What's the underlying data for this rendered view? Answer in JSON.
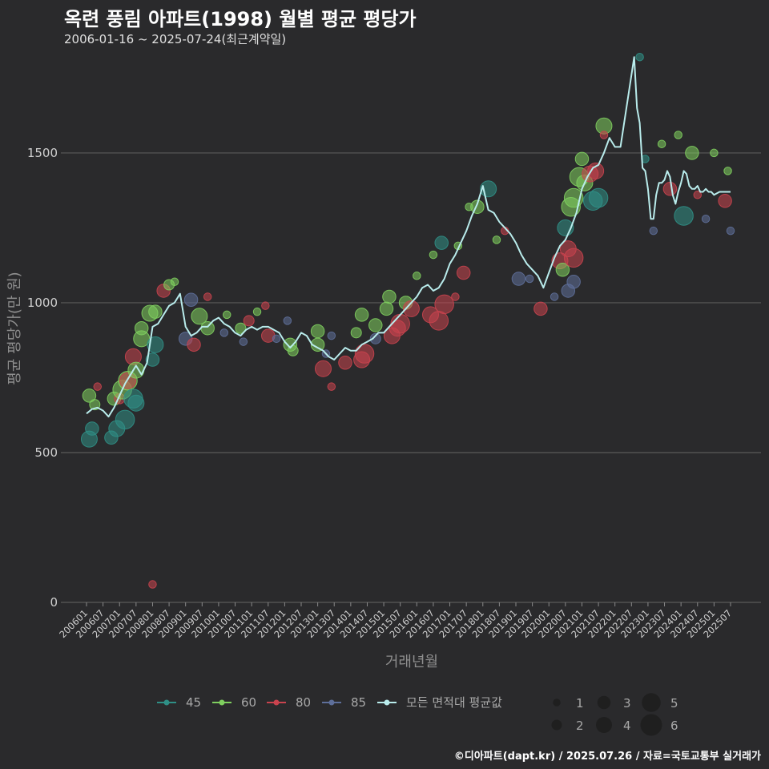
{
  "header": {
    "title": "옥련 풍림 아파트(1998) 월별 평균 평당가",
    "subtitle": "2006-01-16 ~ 2025-07-24(최근계약일)"
  },
  "footer": {
    "credit": "©디아파트(dapt.kr) / 2025.07.26 / 자료=국토교통부 실거래가"
  },
  "colors": {
    "45": "#2f8f86",
    "60": "#7fcf5f",
    "80": "#c9434e",
    "85": "#5e6f9a",
    "avg": "#b9ecec",
    "grid": "#5a5a5a",
    "bg": "#2a2a2c"
  },
  "chart_data": {
    "type": "line",
    "title": "옥련 풍림 아파트(1998) 월별 평균 평당가",
    "xlabel": "거래년월",
    "ylabel": "평균 평당가(만 원)",
    "xlim": [
      "2006-01",
      "2025-07"
    ],
    "ylim": [
      0,
      1850
    ],
    "yticks": [
      0,
      500,
      1000,
      1500
    ],
    "xticks": [
      "200601",
      "200607",
      "200701",
      "200707",
      "200801",
      "200807",
      "200901",
      "200907",
      "201001",
      "201007",
      "201101",
      "201107",
      "201201",
      "201207",
      "201301",
      "201307",
      "201401",
      "201407",
      "201501",
      "201507",
      "201601",
      "201607",
      "201701",
      "201707",
      "201801",
      "201807",
      "201901",
      "201907",
      "202001",
      "202007",
      "202101",
      "202107",
      "202201",
      "202207",
      "202301",
      "202307",
      "202401",
      "202407",
      "202501",
      "202507"
    ],
    "legend": {
      "series": [
        {
          "key": "45",
          "label": "45"
        },
        {
          "key": "60",
          "label": "60"
        },
        {
          "key": "80",
          "label": "80"
        },
        {
          "key": "85",
          "label": "85"
        },
        {
          "key": "avg",
          "label": "모든 면적대 평균값"
        }
      ],
      "sizes": [
        {
          "value": 1,
          "label": "1"
        },
        {
          "value": 2,
          "label": "2"
        },
        {
          "value": 3,
          "label": "3"
        },
        {
          "value": 4,
          "label": "4"
        },
        {
          "value": 5,
          "label": "5"
        },
        {
          "value": 6,
          "label": "6"
        }
      ]
    },
    "average_line": {
      "name": "모든 면적대 평균값",
      "x": [
        "2006-01",
        "2006-03",
        "2006-05",
        "2006-07",
        "2006-09",
        "2006-11",
        "2007-01",
        "2007-03",
        "2007-05",
        "2007-07",
        "2007-09",
        "2007-11",
        "2008-01",
        "2008-03",
        "2008-05",
        "2008-07",
        "2008-09",
        "2008-11",
        "2009-01",
        "2009-03",
        "2009-05",
        "2009-07",
        "2009-09",
        "2009-11",
        "2010-01",
        "2010-03",
        "2010-05",
        "2010-07",
        "2010-09",
        "2010-11",
        "2011-01",
        "2011-03",
        "2011-05",
        "2011-07",
        "2011-09",
        "2011-11",
        "2012-01",
        "2012-03",
        "2012-05",
        "2012-07",
        "2012-09",
        "2012-11",
        "2013-01",
        "2013-03",
        "2013-05",
        "2013-07",
        "2013-09",
        "2013-11",
        "2014-01",
        "2014-03",
        "2014-05",
        "2014-07",
        "2014-09",
        "2014-11",
        "2015-01",
        "2015-03",
        "2015-05",
        "2015-07",
        "2015-09",
        "2015-11",
        "2016-01",
        "2016-03",
        "2016-05",
        "2016-07",
        "2016-09",
        "2016-11",
        "2017-01",
        "2017-03",
        "2017-05",
        "2017-07",
        "2017-09",
        "2017-11",
        "2018-01",
        "2018-03",
        "2018-05",
        "2018-07",
        "2018-09",
        "2018-11",
        "2019-01",
        "2019-03",
        "2019-05",
        "2019-07",
        "2019-09",
        "2019-11",
        "2020-01",
        "2020-03",
        "2020-05",
        "2020-07",
        "2020-09",
        "2020-11",
        "2021-01",
        "2021-03",
        "2021-05",
        "2021-07",
        "2021-09",
        "2021-11",
        "2022-01",
        "2022-03",
        "2022-08",
        "2022-09",
        "2022-10",
        "2022-11",
        "2022-12",
        "2023-01",
        "2023-02",
        "2023-03",
        "2023-04",
        "2023-05",
        "2023-06",
        "2023-07",
        "2023-08",
        "2023-09",
        "2023-10",
        "2023-11",
        "2023-12",
        "2024-01",
        "2024-02",
        "2024-03",
        "2024-04",
        "2024-05",
        "2024-06",
        "2024-07",
        "2024-08",
        "2024-09",
        "2024-10",
        "2024-11",
        "2024-12",
        "2025-01",
        "2025-02",
        "2025-03",
        "2025-04",
        "2025-05",
        "2025-06",
        "2025-07"
      ],
      "y": [
        630,
        645,
        650,
        640,
        620,
        650,
        690,
        730,
        760,
        790,
        760,
        800,
        920,
        930,
        960,
        990,
        1000,
        1030,
        920,
        890,
        900,
        920,
        920,
        940,
        950,
        930,
        920,
        900,
        890,
        910,
        920,
        910,
        920,
        920,
        910,
        900,
        870,
        850,
        870,
        900,
        890,
        860,
        850,
        840,
        820,
        810,
        830,
        850,
        840,
        840,
        860,
        870,
        880,
        900,
        900,
        920,
        940,
        960,
        980,
        1000,
        1020,
        1050,
        1060,
        1040,
        1050,
        1080,
        1130,
        1160,
        1200,
        1240,
        1290,
        1330,
        1390,
        1310,
        1300,
        1270,
        1250,
        1230,
        1200,
        1160,
        1130,
        1110,
        1090,
        1050,
        1100,
        1150,
        1190,
        1210,
        1250,
        1300,
        1380,
        1420,
        1450,
        1460,
        1500,
        1550,
        1520,
        1520,
        1820,
        1650,
        1600,
        1450,
        1440,
        1380,
        1280,
        1280,
        1360,
        1400,
        1400,
        1410,
        1440,
        1420,
        1360,
        1330,
        1370,
        1400,
        1440,
        1430,
        1390,
        1380,
        1380,
        1390,
        1370,
        1370,
        1380,
        1370,
        1370,
        1360,
        1365,
        1370,
        1370,
        1370,
        1370,
        1370
      ]
    },
    "scatter": [
      {
        "size_class": "45",
        "x": "2006-02",
        "y": 545,
        "count": 4
      },
      {
        "size_class": "45",
        "x": "2006-03",
        "y": 580,
        "count": 3
      },
      {
        "size_class": "60",
        "x": "2006-02",
        "y": 690,
        "count": 3
      },
      {
        "size_class": "60",
        "x": "2006-04",
        "y": 660,
        "count": 2
      },
      {
        "size_class": "80",
        "x": "2006-05",
        "y": 720,
        "count": 1
      },
      {
        "size_class": "45",
        "x": "2006-10",
        "y": 550,
        "count": 3
      },
      {
        "size_class": "45",
        "x": "2006-12",
        "y": 580,
        "count": 4
      },
      {
        "size_class": "60",
        "x": "2006-11",
        "y": 680,
        "count": 3
      },
      {
        "size_class": "80",
        "x": "2007-01",
        "y": 680,
        "count": 2
      },
      {
        "size_class": "45",
        "x": "2007-03",
        "y": 610,
        "count": 5
      },
      {
        "size_class": "60",
        "x": "2007-02",
        "y": 710,
        "count": 5
      },
      {
        "size_class": "60",
        "x": "2007-04",
        "y": 740,
        "count": 5
      },
      {
        "size_class": "80",
        "x": "2007-04",
        "y": 740,
        "count": 4
      },
      {
        "size_class": "80",
        "x": "2007-06",
        "y": 820,
        "count": 4
      },
      {
        "size_class": "45",
        "x": "2007-06",
        "y": 680,
        "count": 5
      },
      {
        "size_class": "45",
        "x": "2007-07",
        "y": 665,
        "count": 4
      },
      {
        "size_class": "60",
        "x": "2007-07",
        "y": 775,
        "count": 4
      },
      {
        "size_class": "60",
        "x": "2007-09",
        "y": 880,
        "count": 4
      },
      {
        "size_class": "60",
        "x": "2007-09",
        "y": 915,
        "count": 3
      },
      {
        "size_class": "60",
        "x": "2007-12",
        "y": 965,
        "count": 4
      },
      {
        "size_class": "45",
        "x": "2008-01",
        "y": 810,
        "count": 3
      },
      {
        "size_class": "45",
        "x": "2008-02",
        "y": 860,
        "count": 4
      },
      {
        "size_class": "80",
        "x": "2008-01",
        "y": 60,
        "count": 1
      },
      {
        "size_class": "60",
        "x": "2008-02",
        "y": 970,
        "count": 3
      },
      {
        "size_class": "80",
        "x": "2008-05",
        "y": 1040,
        "count": 3
      },
      {
        "size_class": "60",
        "x": "2008-07",
        "y": 1060,
        "count": 2
      },
      {
        "size_class": "60",
        "x": "2008-09",
        "y": 1070,
        "count": 1
      },
      {
        "size_class": "85",
        "x": "2009-03",
        "y": 1010,
        "count": 3
      },
      {
        "size_class": "85",
        "x": "2009-01",
        "y": 880,
        "count": 3
      },
      {
        "size_class": "80",
        "x": "2009-04",
        "y": 860,
        "count": 3
      },
      {
        "size_class": "60",
        "x": "2009-06",
        "y": 955,
        "count": 4
      },
      {
        "size_class": "60",
        "x": "2009-09",
        "y": 915,
        "count": 3
      },
      {
        "size_class": "80",
        "x": "2009-09",
        "y": 1020,
        "count": 1
      },
      {
        "size_class": "60",
        "x": "2010-04",
        "y": 960,
        "count": 1
      },
      {
        "size_class": "85",
        "x": "2010-03",
        "y": 900,
        "count": 1
      },
      {
        "size_class": "60",
        "x": "2010-09",
        "y": 915,
        "count": 2
      },
      {
        "size_class": "80",
        "x": "2010-12",
        "y": 940,
        "count": 2
      },
      {
        "size_class": "85",
        "x": "2010-10",
        "y": 870,
        "count": 1
      },
      {
        "size_class": "60",
        "x": "2011-03",
        "y": 970,
        "count": 1
      },
      {
        "size_class": "80",
        "x": "2011-06",
        "y": 990,
        "count": 1
      },
      {
        "size_class": "80",
        "x": "2011-07",
        "y": 890,
        "count": 3
      },
      {
        "size_class": "85",
        "x": "2011-10",
        "y": 880,
        "count": 1
      },
      {
        "size_class": "60",
        "x": "2012-03",
        "y": 860,
        "count": 3
      },
      {
        "size_class": "60",
        "x": "2012-04",
        "y": 840,
        "count": 2
      },
      {
        "size_class": "85",
        "x": "2012-02",
        "y": 940,
        "count": 1
      },
      {
        "size_class": "60",
        "x": "2013-01",
        "y": 905,
        "count": 3
      },
      {
        "size_class": "60",
        "x": "2013-01",
        "y": 860,
        "count": 3
      },
      {
        "size_class": "80",
        "x": "2013-03",
        "y": 780,
        "count": 4
      },
      {
        "size_class": "80",
        "x": "2013-06",
        "y": 720,
        "count": 1
      },
      {
        "size_class": "85",
        "x": "2013-04",
        "y": 830,
        "count": 1
      },
      {
        "size_class": "85",
        "x": "2013-06",
        "y": 890,
        "count": 1
      },
      {
        "size_class": "80",
        "x": "2013-11",
        "y": 800,
        "count": 3
      },
      {
        "size_class": "60",
        "x": "2014-03",
        "y": 900,
        "count": 2
      },
      {
        "size_class": "60",
        "x": "2014-05",
        "y": 960,
        "count": 3
      },
      {
        "size_class": "80",
        "x": "2014-06",
        "y": 830,
        "count": 5
      },
      {
        "size_class": "80",
        "x": "2014-05",
        "y": 810,
        "count": 4
      },
      {
        "size_class": "60",
        "x": "2014-10",
        "y": 925,
        "count": 3
      },
      {
        "size_class": "85",
        "x": "2014-10",
        "y": 880,
        "count": 2
      },
      {
        "size_class": "80",
        "x": "2015-04",
        "y": 890,
        "count": 4
      },
      {
        "size_class": "80",
        "x": "2015-07",
        "y": 930,
        "count": 5
      },
      {
        "size_class": "80",
        "x": "2015-06",
        "y": 915,
        "count": 4
      },
      {
        "size_class": "60",
        "x": "2015-03",
        "y": 1020,
        "count": 3
      },
      {
        "size_class": "60",
        "x": "2015-02",
        "y": 980,
        "count": 3
      },
      {
        "size_class": "60",
        "x": "2015-09",
        "y": 1000,
        "count": 3
      },
      {
        "size_class": "80",
        "x": "2015-11",
        "y": 980,
        "count": 4
      },
      {
        "size_class": "60",
        "x": "2016-01",
        "y": 1090,
        "count": 1
      },
      {
        "size_class": "80",
        "x": "2016-06",
        "y": 960,
        "count": 4
      },
      {
        "size_class": "80",
        "x": "2016-09",
        "y": 940,
        "count": 5
      },
      {
        "size_class": "80",
        "x": "2016-11",
        "y": 995,
        "count": 5
      },
      {
        "size_class": "45",
        "x": "2016-10",
        "y": 1200,
        "count": 3
      },
      {
        "size_class": "60",
        "x": "2016-07",
        "y": 1160,
        "count": 1
      },
      {
        "size_class": "60",
        "x": "2017-04",
        "y": 1190,
        "count": 1
      },
      {
        "size_class": "80",
        "x": "2017-06",
        "y": 1100,
        "count": 3
      },
      {
        "size_class": "80",
        "x": "2017-03",
        "y": 1020,
        "count": 1
      },
      {
        "size_class": "60",
        "x": "2017-08",
        "y": 1320,
        "count": 1
      },
      {
        "size_class": "60",
        "x": "2017-11",
        "y": 1320,
        "count": 3
      },
      {
        "size_class": "45",
        "x": "2018-03",
        "y": 1380,
        "count": 4
      },
      {
        "size_class": "60",
        "x": "2018-06",
        "y": 1210,
        "count": 1
      },
      {
        "size_class": "80",
        "x": "2018-09",
        "y": 1240,
        "count": 1
      },
      {
        "size_class": "85",
        "x": "2019-02",
        "y": 1080,
        "count": 3
      },
      {
        "size_class": "85",
        "x": "2019-06",
        "y": 1080,
        "count": 1
      },
      {
        "size_class": "80",
        "x": "2019-10",
        "y": 980,
        "count": 3
      },
      {
        "size_class": "85",
        "x": "2020-03",
        "y": 1020,
        "count": 1
      },
      {
        "size_class": "80",
        "x": "2020-05",
        "y": 1140,
        "count": 4
      },
      {
        "size_class": "60",
        "x": "2020-06",
        "y": 1110,
        "count": 3
      },
      {
        "size_class": "45",
        "x": "2020-07",
        "y": 1250,
        "count": 4
      },
      {
        "size_class": "80",
        "x": "2020-08",
        "y": 1180,
        "count": 4
      },
      {
        "size_class": "80",
        "x": "2020-10",
        "y": 1150,
        "count": 5
      },
      {
        "size_class": "85",
        "x": "2020-08",
        "y": 1040,
        "count": 3
      },
      {
        "size_class": "85",
        "x": "2020-10",
        "y": 1070,
        "count": 3
      },
      {
        "size_class": "60",
        "x": "2020-09",
        "y": 1320,
        "count": 5
      },
      {
        "size_class": "60",
        "x": "2020-10",
        "y": 1350,
        "count": 5
      },
      {
        "size_class": "60",
        "x": "2020-12",
        "y": 1420,
        "count": 5
      },
      {
        "size_class": "60",
        "x": "2021-01",
        "y": 1480,
        "count": 3
      },
      {
        "size_class": "60",
        "x": "2021-02",
        "y": 1400,
        "count": 4
      },
      {
        "size_class": "45",
        "x": "2021-05",
        "y": 1340,
        "count": 5
      },
      {
        "size_class": "45",
        "x": "2021-07",
        "y": 1350,
        "count": 5
      },
      {
        "size_class": "80",
        "x": "2021-06",
        "y": 1440,
        "count": 4
      },
      {
        "size_class": "80",
        "x": "2021-04",
        "y": 1430,
        "count": 4
      },
      {
        "size_class": "60",
        "x": "2021-09",
        "y": 1590,
        "count": 4
      },
      {
        "size_class": "80",
        "x": "2021-09",
        "y": 1560,
        "count": 1
      },
      {
        "size_class": "45",
        "x": "2022-10",
        "y": 1820,
        "count": 1
      },
      {
        "size_class": "45",
        "x": "2022-12",
        "y": 1480,
        "count": 1
      },
      {
        "size_class": "85",
        "x": "2023-03",
        "y": 1240,
        "count": 1
      },
      {
        "size_class": "60",
        "x": "2023-06",
        "y": 1530,
        "count": 1
      },
      {
        "size_class": "80",
        "x": "2023-09",
        "y": 1380,
        "count": 3
      },
      {
        "size_class": "60",
        "x": "2023-12",
        "y": 1560,
        "count": 1
      },
      {
        "size_class": "45",
        "x": "2024-02",
        "y": 1290,
        "count": 5
      },
      {
        "size_class": "60",
        "x": "2024-05",
        "y": 1500,
        "count": 3
      },
      {
        "size_class": "80",
        "x": "2024-07",
        "y": 1360,
        "count": 1
      },
      {
        "size_class": "85",
        "x": "2024-10",
        "y": 1280,
        "count": 1
      },
      {
        "size_class": "60",
        "x": "2025-01",
        "y": 1500,
        "count": 1
      },
      {
        "size_class": "80",
        "x": "2025-05",
        "y": 1340,
        "count": 3
      },
      {
        "size_class": "60",
        "x": "2025-06",
        "y": 1440,
        "count": 1
      },
      {
        "size_class": "85",
        "x": "2025-07",
        "y": 1240,
        "count": 1
      }
    ]
  }
}
